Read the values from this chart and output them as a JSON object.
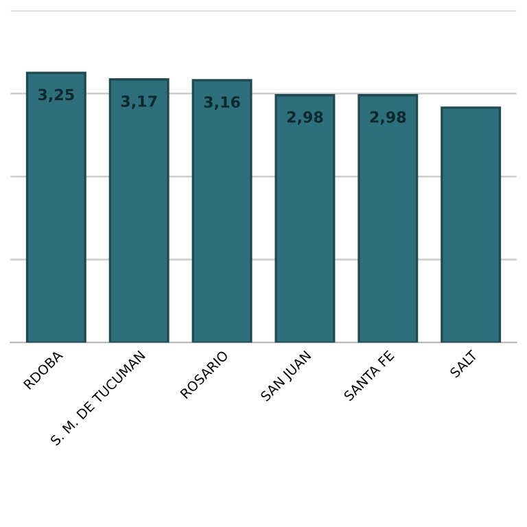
{
  "chart_data": {
    "type": "bar",
    "categories": [
      "RDOBA",
      "S. M. DE TUCUMAN",
      "ROSARIO",
      "SAN JUAN",
      "SANTA FE",
      "SALT"
    ],
    "values": [
      3.25,
      3.17,
      3.16,
      2.98,
      2.98,
      2.83
    ],
    "value_labels": [
      "3,25",
      "3,17",
      "3,16",
      "2,98",
      "2,98",
      null
    ],
    "color": "#2f6f7b",
    "ylim": [
      0,
      4
    ],
    "yticks": [
      {
        "value": 0,
        "label": null
      },
      {
        "value": 1,
        "label": null
      },
      {
        "value": 2,
        "label": null
      },
      {
        "value": 3,
        "label": null
      },
      {
        "value": 4,
        "label": null
      }
    ],
    "grid": "y",
    "tick_labels": "x"
  }
}
